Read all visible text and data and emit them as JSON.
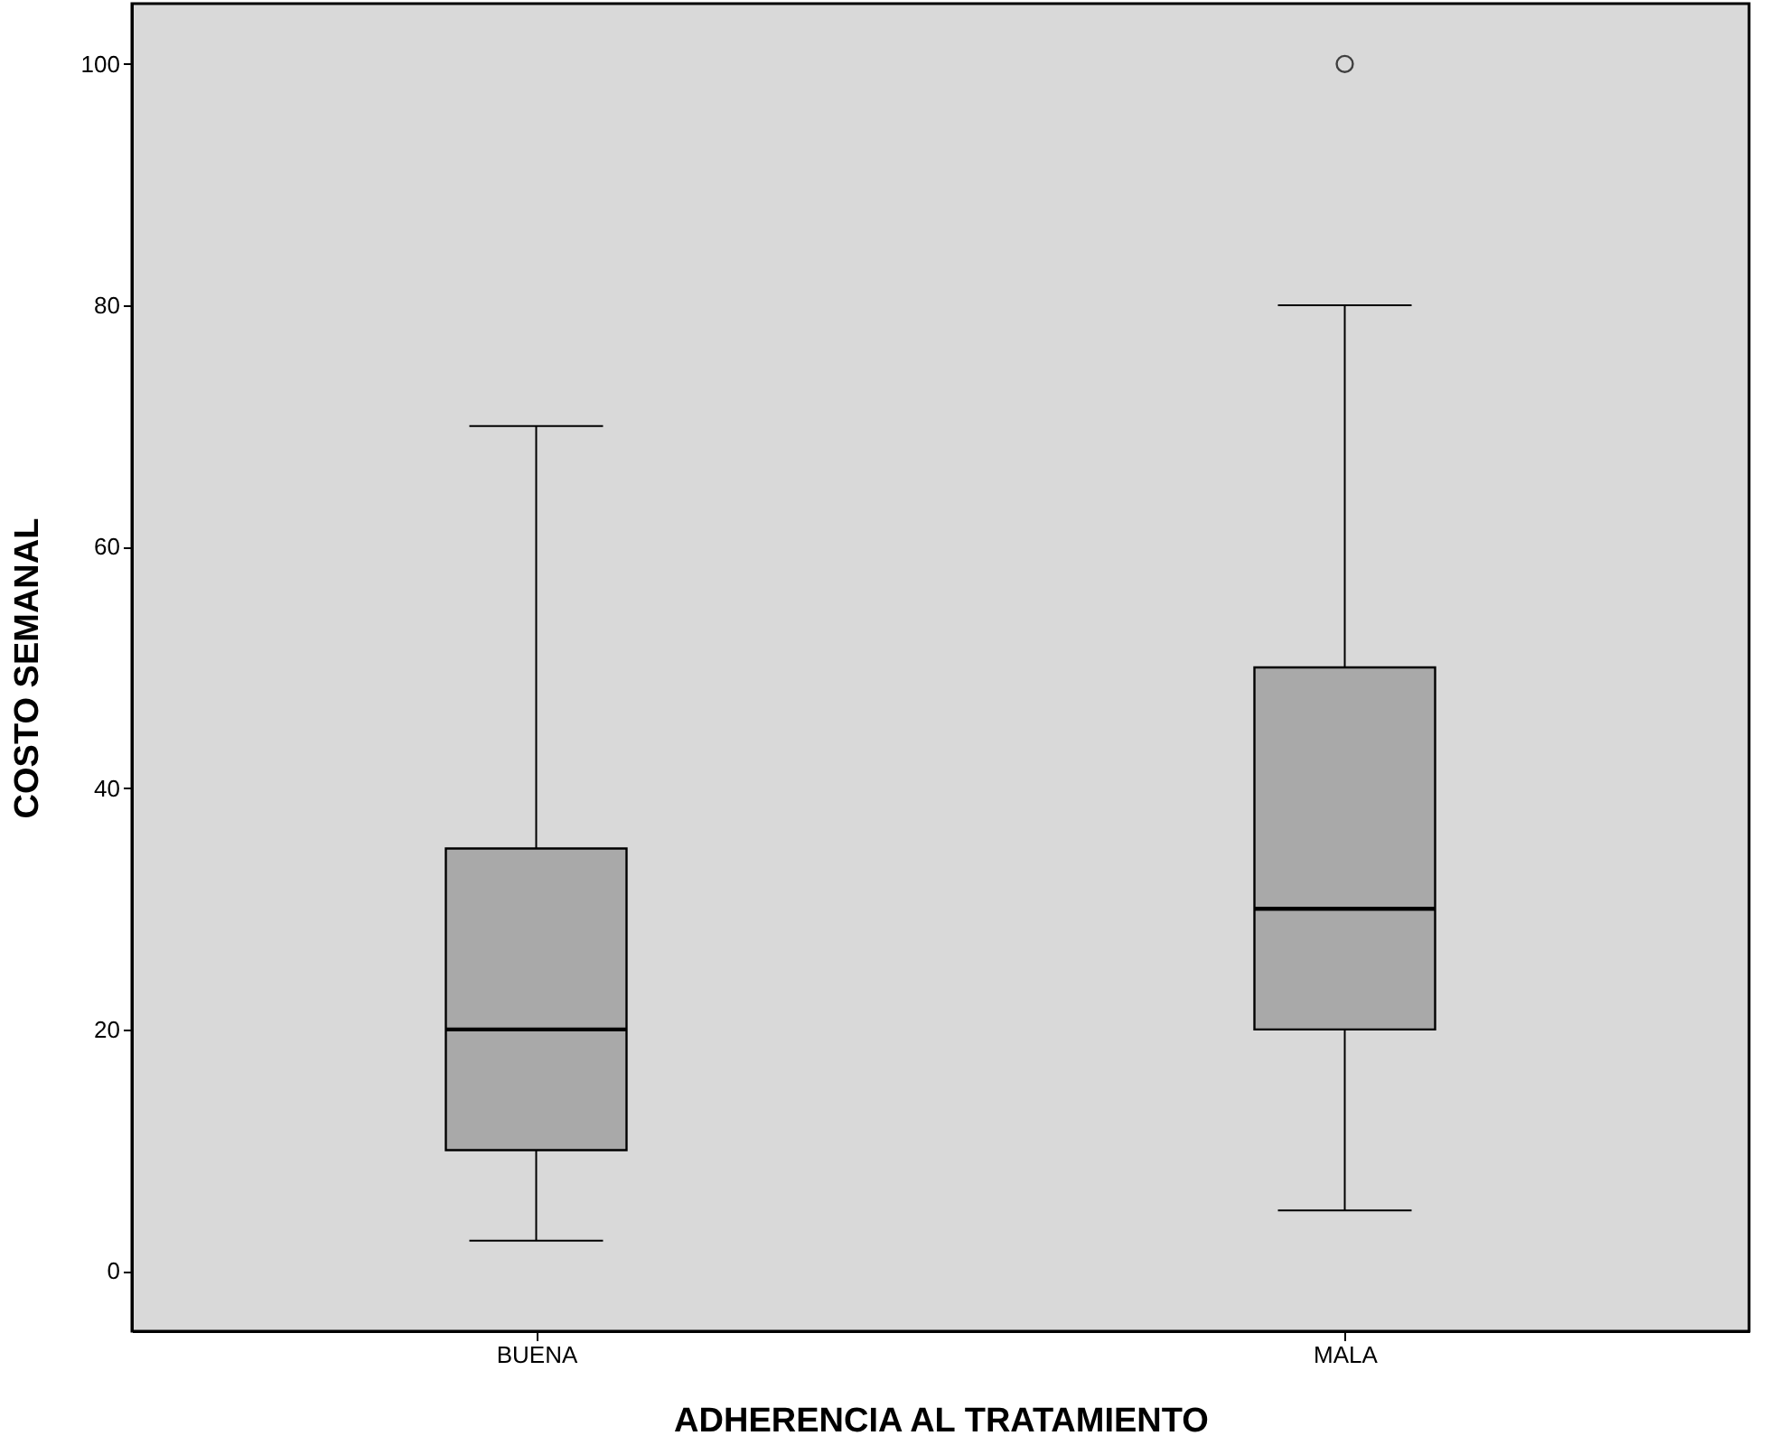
{
  "chart_data": {
    "type": "box",
    "xlabel": "ADHERENCIA AL TRATAMIENTO",
    "ylabel": "COSTO SEMANAL",
    "categories": [
      "BUENA",
      "MALA"
    ],
    "boxes": [
      {
        "low": 2.5,
        "q1": 10,
        "median": 20,
        "q3": 35,
        "high": 70
      },
      {
        "low": 5,
        "q1": 20,
        "median": 30,
        "q3": 50,
        "high": 80,
        "outliers": [
          100
        ]
      }
    ],
    "color": "#a9a9a9",
    "ylim": [
      -5,
      105
    ],
    "yticks": [
      0,
      20,
      40,
      60,
      80,
      100
    ],
    "grid": false
  }
}
